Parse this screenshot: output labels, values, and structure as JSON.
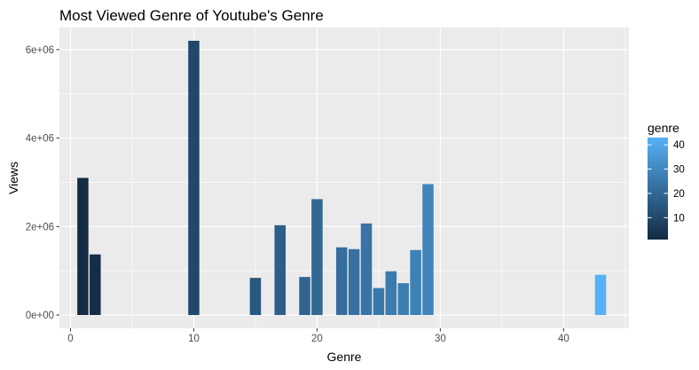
{
  "chart_data": {
    "type": "bar",
    "title": "Most Viewed Genre of Youtube's Genre",
    "xlabel": "Genre",
    "ylabel": "Views",
    "xlim": [
      -0.9,
      45.3
    ],
    "ylim": [
      -300000,
      6500000
    ],
    "x_ticks": [
      0,
      10,
      20,
      30,
      40
    ],
    "x_tick_labels": [
      "0",
      "10",
      "20",
      "30",
      "40"
    ],
    "y_ticks": [
      0,
      2000000,
      4000000,
      6000000
    ],
    "y_tick_labels": [
      "0e+00",
      "2e+06",
      "4e+06",
      "6e+06"
    ],
    "grid": true,
    "panel_background": "#ebebeb",
    "bars": [
      {
        "x": 1,
        "value": 3100000
      },
      {
        "x": 2,
        "value": 1370000
      },
      {
        "x": 10,
        "value": 6200000
      },
      {
        "x": 15,
        "value": 840000
      },
      {
        "x": 17,
        "value": 2030000
      },
      {
        "x": 19,
        "value": 860000
      },
      {
        "x": 20,
        "value": 2620000
      },
      {
        "x": 22,
        "value": 1530000
      },
      {
        "x": 23,
        "value": 1490000
      },
      {
        "x": 24,
        "value": 2070000
      },
      {
        "x": 25,
        "value": 610000
      },
      {
        "x": 26,
        "value": 990000
      },
      {
        "x": 27,
        "value": 720000
      },
      {
        "x": 28,
        "value": 1470000
      },
      {
        "x": 29,
        "value": 2960000
      },
      {
        "x": 43,
        "value": 910000
      }
    ],
    "fill_by": "genre",
    "legend": {
      "title": "genre",
      "position": "right",
      "type": "colorbar",
      "range": [
        1,
        43
      ],
      "breaks": [
        10,
        20,
        30,
        40
      ],
      "break_labels": [
        "10",
        "20",
        "30",
        "40"
      ],
      "low_color": "#132b43",
      "high_color": "#56b1f7"
    }
  }
}
